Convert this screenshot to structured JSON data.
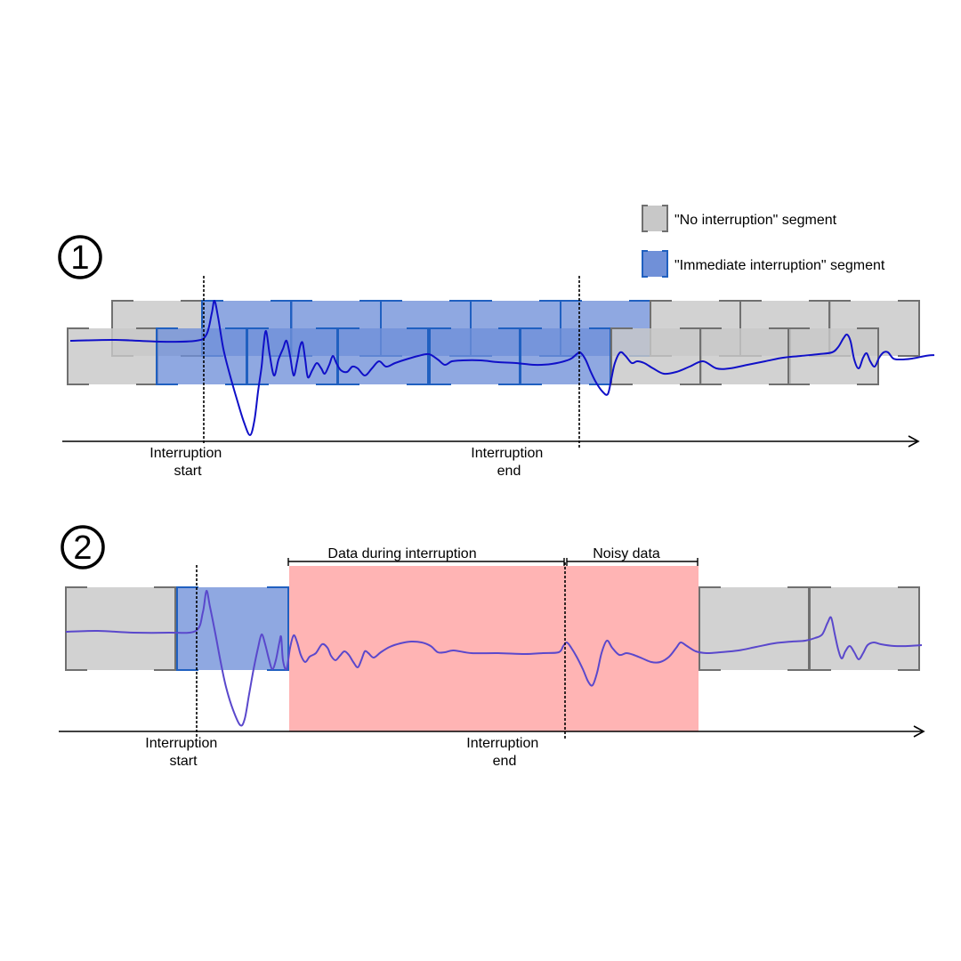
{
  "legend": {
    "no_interruption": "\"No interruption\" segment",
    "immediate_interruption": "\"Immediate interruption\" segment"
  },
  "panel1": {
    "number": "1",
    "start_label": [
      "Interruption",
      "start"
    ],
    "end_label": [
      "Interruption",
      "end"
    ]
  },
  "panel2": {
    "number": "2",
    "start_label": [
      "Interruption",
      "start"
    ],
    "end_label": [
      "Interruption",
      "end"
    ],
    "during_label": "Data during interruption",
    "noisy_label": "Noisy data"
  },
  "colors": {
    "gray_fill": "#c8c8c8",
    "gray_stroke": "#707070",
    "blue_fill": "#7090d8",
    "blue_stroke": "#2060c0",
    "pink_fill": "#ffb4b4",
    "signal1": "#1010c8",
    "signal2": "#5a48cc"
  }
}
